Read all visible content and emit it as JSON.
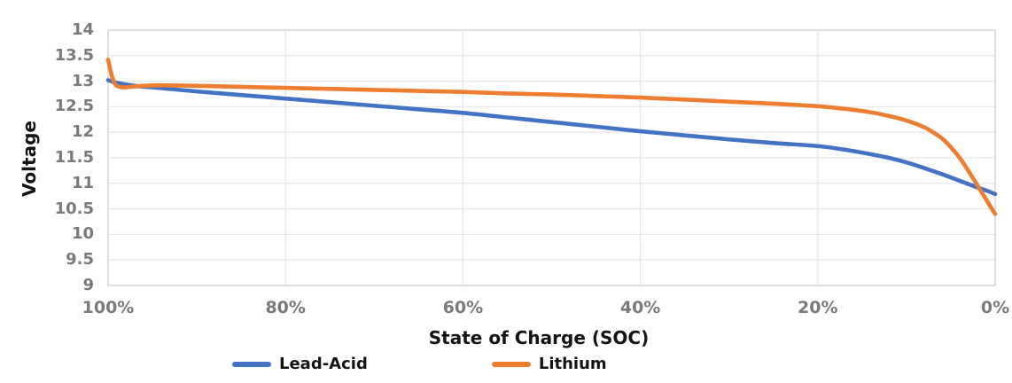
{
  "chart": {
    "y_axis_title": "Voltage",
    "x_axis_title": "State of Charge (SOC)",
    "legend": [
      {
        "label": "Lead-Acid",
        "color": "#4472C4"
      },
      {
        "label": "Lithium",
        "color": "#ED7D31"
      }
    ]
  },
  "chart_data": {
    "type": "line",
    "title": "",
    "xlabel": "State of Charge (SOC)",
    "ylabel": "Voltage",
    "xlim": [
      100,
      0
    ],
    "ylim": [
      9,
      14
    ],
    "grid": true,
    "legend_position": "bottom",
    "x_ticks": {
      "values": [
        100,
        80,
        60,
        40,
        20,
        0
      ],
      "labels": [
        "100%",
        "80%",
        "60%",
        "40%",
        "20%",
        "0%"
      ]
    },
    "y_ticks": {
      "values": [
        14,
        13.5,
        13,
        12.5,
        12,
        11.5,
        11,
        10.5,
        10,
        9.5,
        9
      ],
      "labels": [
        "14",
        "13.5",
        "13",
        "12.5",
        "12",
        "11.5",
        "11",
        "10.5",
        "10",
        "9.5",
        "9"
      ]
    },
    "series": [
      {
        "name": "Lead-Acid",
        "color": "#4472C4",
        "points": [
          [
            100,
            13.02
          ],
          [
            99,
            12.97
          ],
          [
            97,
            12.91
          ],
          [
            95,
            12.88
          ],
          [
            90,
            12.8
          ],
          [
            85,
            12.73
          ],
          [
            80,
            12.66
          ],
          [
            75,
            12.59
          ],
          [
            70,
            12.52
          ],
          [
            65,
            12.45
          ],
          [
            60,
            12.38
          ],
          [
            55,
            12.29
          ],
          [
            50,
            12.2
          ],
          [
            45,
            12.11
          ],
          [
            40,
            12.02
          ],
          [
            35,
            11.94
          ],
          [
            30,
            11.86
          ],
          [
            25,
            11.79
          ],
          [
            20,
            11.73
          ],
          [
            17,
            11.66
          ],
          [
            14,
            11.57
          ],
          [
            12,
            11.5
          ],
          [
            10,
            11.41
          ],
          [
            8,
            11.3
          ],
          [
            6,
            11.18
          ],
          [
            4,
            11.05
          ],
          [
            2,
            10.92
          ],
          [
            1,
            10.86
          ],
          [
            0,
            10.79
          ]
        ]
      },
      {
        "name": "Lithium",
        "color": "#ED7D31",
        "points": [
          [
            100,
            13.42
          ],
          [
            99.6,
            13.12
          ],
          [
            99.2,
            12.94
          ],
          [
            98.5,
            12.88
          ],
          [
            97.5,
            12.89
          ],
          [
            96,
            12.91
          ],
          [
            94,
            12.92
          ],
          [
            90,
            12.91
          ],
          [
            85,
            12.89
          ],
          [
            80,
            12.87
          ],
          [
            75,
            12.85
          ],
          [
            70,
            12.83
          ],
          [
            65,
            12.81
          ],
          [
            60,
            12.79
          ],
          [
            55,
            12.76
          ],
          [
            50,
            12.74
          ],
          [
            45,
            12.71
          ],
          [
            40,
            12.68
          ],
          [
            35,
            12.64
          ],
          [
            30,
            12.6
          ],
          [
            25,
            12.56
          ],
          [
            20,
            12.51
          ],
          [
            17,
            12.46
          ],
          [
            14,
            12.39
          ],
          [
            12,
            12.32
          ],
          [
            10,
            12.23
          ],
          [
            8,
            12.1
          ],
          [
            7,
            12.0
          ],
          [
            6,
            11.88
          ],
          [
            5,
            11.71
          ],
          [
            4,
            11.5
          ],
          [
            3,
            11.24
          ],
          [
            2,
            10.96
          ],
          [
            1,
            10.68
          ],
          [
            0.3,
            10.48
          ],
          [
            0,
            10.4
          ]
        ]
      }
    ]
  }
}
